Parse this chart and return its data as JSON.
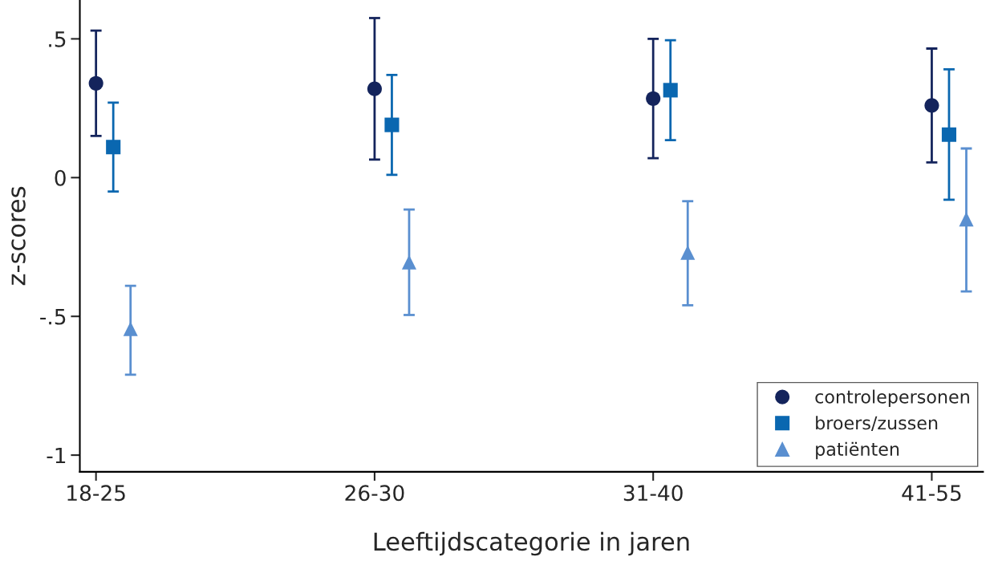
{
  "chart_data": {
    "type": "scatter",
    "xlabel": "Leeftijdscategorie in jaren",
    "ylabel": "z-scores",
    "categories": [
      "18-25",
      "26-30",
      "31-40",
      "41-55"
    ],
    "series": [
      {
        "name": "controlepersonen",
        "color": "#14245c",
        "marker": "circle",
        "values": [
          0.34,
          0.32,
          0.285,
          0.26
        ],
        "errors": [
          [
            0.15,
            0.53
          ],
          [
            0.065,
            0.575
          ],
          [
            0.07,
            0.5
          ],
          [
            0.055,
            0.465
          ]
        ]
      },
      {
        "name": "broers/zussen",
        "color": "#0a67b0",
        "marker": "square",
        "values": [
          0.11,
          0.19,
          0.315,
          0.155
        ],
        "errors": [
          [
            -0.05,
            0.27
          ],
          [
            0.01,
            0.37
          ],
          [
            0.135,
            0.495
          ],
          [
            -0.08,
            0.39
          ]
        ]
      },
      {
        "name": "patiënten",
        "color": "#5a8fd0",
        "marker": "triangle",
        "values": [
          -0.545,
          -0.305,
          -0.27,
          -0.15
        ],
        "errors": [
          [
            -0.71,
            -0.39
          ],
          [
            -0.495,
            -0.115
          ],
          [
            -0.46,
            -0.085
          ],
          [
            -0.41,
            0.105
          ]
        ]
      }
    ],
    "ylim": [
      -1.06,
      0.64
    ],
    "yticks": [
      {
        "value": -1,
        "label": "-1"
      },
      {
        "value": -0.5,
        "label": "-.5"
      },
      0,
      {
        "value": 0.5,
        "label": ".5"
      }
    ],
    "grid": false,
    "legend": "bottom right"
  }
}
